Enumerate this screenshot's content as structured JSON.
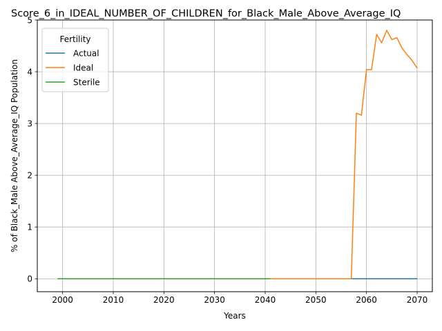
{
  "chart_data": {
    "type": "line",
    "title": "Score_6_in_IDEAL_NUMBER_OF_CHILDREN_for_Black_Male_Above_Average_IQ",
    "xlabel": "Years",
    "ylabel": "% of Black_Male Above_Average_IQ Population",
    "xlim": [
      1995,
      2073
    ],
    "ylim": [
      -0.25,
      5
    ],
    "xticks": [
      2000,
      2010,
      2020,
      2030,
      2040,
      2050,
      2060,
      2070
    ],
    "yticks": [
      0,
      1,
      2,
      3,
      4,
      5
    ],
    "grid": true,
    "legend": {
      "title": "Fertility",
      "placement": "top-left"
    },
    "series": [
      {
        "name": "Actual",
        "color": "#1f77b4",
        "x": [
          2057,
          2070
        ],
        "y": [
          0,
          0
        ]
      },
      {
        "name": "Ideal",
        "color": "#ff7f0e",
        "x": [
          2041,
          2052,
          2057,
          2058,
          2059,
          2060,
          2061,
          2062,
          2063,
          2064,
          2065,
          2066,
          2067,
          2068,
          2069,
          2070
        ],
        "y": [
          0,
          0,
          0,
          3.2,
          3.16,
          4.04,
          4.04,
          4.72,
          4.56,
          4.8,
          4.62,
          4.66,
          4.46,
          4.33,
          4.22,
          4.07
        ]
      },
      {
        "name": "Sterile",
        "color": "#2ca02c",
        "x": [
          1999,
          2041
        ],
        "y": [
          0,
          0
        ]
      }
    ]
  }
}
